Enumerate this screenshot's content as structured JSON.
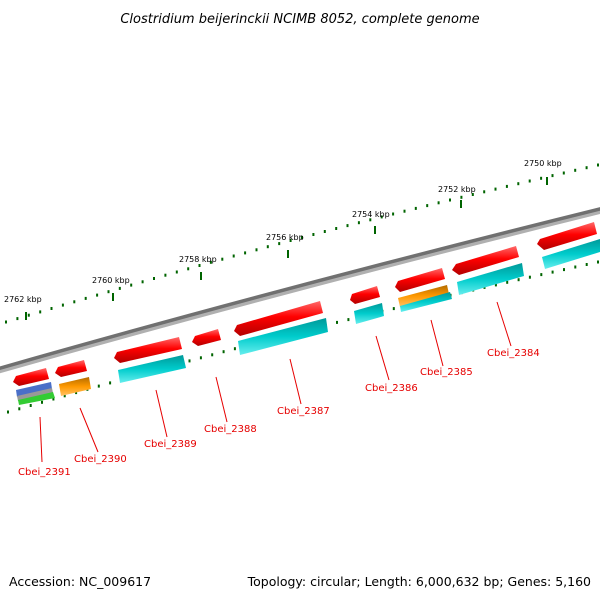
{
  "title": "Clostridium beijerinckii NCIMB 8052, complete genome",
  "footer": {
    "accession": "Accession: NC_009617",
    "topology": "Topology: circular; Length: 6,000,632 bp; Genes: 5,160"
  },
  "tick_labels": [
    "2750 kbp",
    "2752 kbp",
    "2754 kbp",
    "2756 kbp",
    "2758 kbp",
    "2760 kbp",
    "2762 kbp"
  ],
  "genes": [
    {
      "name": "Cbei_2384"
    },
    {
      "name": "Cbei_2385"
    },
    {
      "name": "Cbei_2386"
    },
    {
      "name": "Cbei_2387"
    },
    {
      "name": "Cbei_2388"
    },
    {
      "name": "Cbei_2389"
    },
    {
      "name": "Cbei_2390"
    },
    {
      "name": "Cbei_2391"
    }
  ],
  "colors": {
    "cds": "#ff0000",
    "feature_cyan": "#00cccc",
    "feature_orange": "#ff9900",
    "feature_blue": "#4a6fc8",
    "feature_green": "#33cc33",
    "backbone": "#808080",
    "ticks": "#006400",
    "label": "#e60000"
  }
}
